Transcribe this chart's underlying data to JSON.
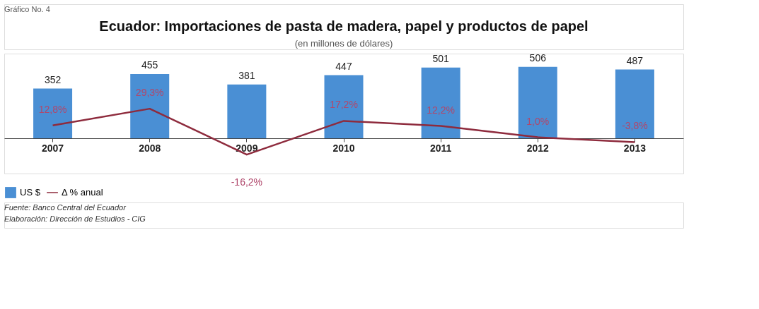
{
  "chart_data": {
    "type": "bar",
    "title": "Ecuador: Importaciones de pasta de madera, papel y productos de papel",
    "subtitle": "(en millones de dólares)",
    "categories": [
      "2007",
      "2008",
      "2009",
      "2010",
      "2011",
      "2012",
      "2013"
    ],
    "series": [
      {
        "name": "US $",
        "color": "#4a8fd4",
        "values": [
          352,
          455,
          381,
          447,
          501,
          506,
          487
        ],
        "value_labels": [
          "352",
          "455",
          "381",
          "447",
          "501",
          "506",
          "487"
        ]
      },
      {
        "name": "Δ % anual",
        "type": "line",
        "axis": "y2",
        "color": "#8e2b3d",
        "values": [
          12.8,
          29.3,
          -16.2,
          17.2,
          12.2,
          1.0,
          -3.8
        ],
        "value_labels": [
          "12,8%",
          "29,3%",
          "-16,2%",
          "17,2%",
          "12,2%",
          "1,0%",
          "-3,8%"
        ]
      }
    ],
    "ylim": [
      -250,
      600
    ],
    "y2lim": [
      -35,
      84
    ],
    "legend": "bottom",
    "annotations": [
      "Gráfico No. 4",
      "Fuente: Banco Central del Ecuador",
      "Elaboración: Dirección de Estudios - CIG"
    ]
  }
}
